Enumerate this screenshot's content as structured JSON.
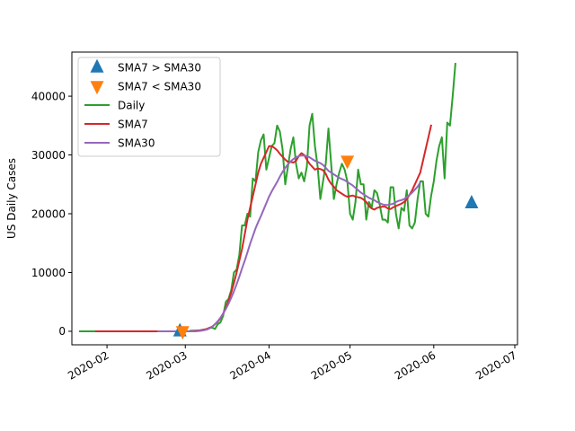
{
  "chart_data": {
    "type": "line",
    "title": "",
    "xlabel": "",
    "ylabel": "US Daily Cases",
    "x_start": "2020-01-22",
    "x_end": "2020-06-28",
    "xlim": [
      "2020-01-19",
      "2020-07-02"
    ],
    "ylim": [
      -2300,
      47500
    ],
    "grid": false,
    "legend_position": "upper left",
    "x_ticks": [
      {
        "date": "2020-02-01",
        "label": "2020-02"
      },
      {
        "date": "2020-03-01",
        "label": "2020-03"
      },
      {
        "date": "2020-04-01",
        "label": "2020-04"
      },
      {
        "date": "2020-05-01",
        "label": "2020-05"
      },
      {
        "date": "2020-06-01",
        "label": "2020-06"
      },
      {
        "date": "2020-07-01",
        "label": "2020-07"
      }
    ],
    "y_ticks": [
      {
        "value": 0,
        "label": "0"
      },
      {
        "value": 10000,
        "label": "10000"
      },
      {
        "value": 20000,
        "label": "20000"
      },
      {
        "value": 30000,
        "label": "30000"
      },
      {
        "value": 40000,
        "label": "40000"
      }
    ],
    "series": [
      {
        "name": "Daily",
        "color": "#2ca02c",
        "start": "2020-01-22",
        "step_days": 1,
        "values": [
          0,
          0,
          0,
          0,
          0,
          0,
          0,
          0,
          0,
          0,
          0,
          0,
          0,
          0,
          0,
          0,
          0,
          0,
          0,
          0,
          0,
          0,
          0,
          0,
          0,
          0,
          0,
          0,
          0,
          0,
          0,
          0,
          0,
          0,
          0,
          0,
          0,
          0,
          0,
          0,
          0,
          100,
          100,
          100,
          100,
          200,
          300,
          400,
          600,
          600,
          400,
          1200,
          1500,
          2600,
          5000,
          5500,
          7000,
          10000,
          10500,
          13000,
          18000,
          18000,
          20000,
          19500,
          26000,
          25500,
          30500,
          32500,
          33500,
          27500,
          29500,
          31500,
          32000,
          35000,
          34000,
          31000,
          25000,
          28000,
          31000,
          33000,
          28500,
          26000,
          27000,
          25500,
          28000,
          35000,
          37000,
          31500,
          28000,
          22500,
          25500,
          28500,
          34500,
          28500,
          22500,
          25000,
          27000,
          28500,
          27500,
          25500,
          20000,
          19000,
          22000,
          27500,
          25000,
          25000,
          19000,
          22000,
          21000,
          24000,
          23500,
          21500,
          19000,
          19000,
          18500,
          24500,
          24500,
          20000,
          17500,
          21000,
          20500,
          24000,
          18000,
          17500,
          18500,
          22500,
          25500,
          25500,
          20000,
          19500,
          23000,
          25500,
          29000,
          31500,
          33000,
          26000,
          35500,
          35000,
          40000,
          45500
        ]
      },
      {
        "name": "SMA7",
        "color": "#d62728",
        "start": "2020-01-28",
        "step_days": 1,
        "values": [
          0,
          0,
          0,
          0,
          0,
          0,
          0,
          0,
          0,
          0,
          0,
          0,
          0,
          0,
          0,
          0,
          0,
          0,
          0,
          0,
          0,
          0,
          0,
          0,
          0,
          0,
          0,
          0,
          0,
          0,
          0,
          0,
          0,
          0,
          0,
          0,
          50,
          100,
          150,
          200,
          300,
          400,
          600,
          800,
          1200,
          1600,
          2200,
          3000,
          4000,
          5200,
          6600,
          8200,
          10000,
          12000,
          14000,
          16500,
          19000,
          21000,
          23000,
          25000,
          27000,
          28500,
          29500,
          30500,
          31500,
          31500,
          31200,
          30800,
          30200,
          29700,
          29200,
          28800,
          28800,
          28700,
          29000,
          29800,
          30300,
          30000,
          29200,
          28500,
          28000,
          27500,
          27700,
          27600,
          27400,
          26800,
          25800,
          25100,
          24600,
          24000,
          23700,
          23400,
          23100,
          22900,
          23000,
          23100,
          22900,
          22800,
          22700,
          22400,
          22000,
          21300,
          20900,
          20700,
          21000,
          21100,
          21200,
          21200,
          20900,
          20800,
          21100,
          21300,
          21500,
          21700,
          22000,
          22500,
          23200,
          24000,
          25000,
          26000,
          27000,
          29000,
          31000,
          33000,
          35000
        ]
      },
      {
        "name": "SMA30",
        "color": "#9467bd",
        "start": "2020-02-20",
        "step_days": 1,
        "values": [
          0,
          0,
          0,
          0,
          0,
          0,
          0,
          0,
          0,
          0,
          0,
          0,
          0,
          0,
          0,
          50,
          100,
          200,
          300,
          500,
          800,
          1200,
          1700,
          2300,
          3000,
          3800,
          4700,
          5700,
          6800,
          8000,
          9300,
          10700,
          12000,
          13400,
          14900,
          16200,
          17500,
          18600,
          19600,
          20700,
          21800,
          22900,
          23800,
          24600,
          25400,
          26300,
          27100,
          27800,
          28400,
          28900,
          29300,
          29600,
          29800,
          29900,
          29900,
          29800,
          29600,
          29300,
          29000,
          28800,
          28600,
          28300,
          27800,
          27300,
          27000,
          26700,
          26400,
          26100,
          25900,
          25700,
          25400,
          25100,
          24800,
          24400,
          24000,
          23600,
          23300,
          23000,
          22700,
          22500,
          22300,
          22000,
          21800,
          21600,
          21500,
          21500,
          21600,
          21700,
          22000,
          22200,
          22300,
          22500,
          22800,
          23200,
          23600,
          24100,
          24600,
          25300
        ]
      }
    ],
    "markers": [
      {
        "name": "SMA7 > SMA30",
        "color": "#1f77b4",
        "shape": "triangle-up",
        "points": [
          {
            "date": "2020-02-28",
            "value": 0
          },
          {
            "date": "2020-06-15",
            "value": 21800
          }
        ]
      },
      {
        "name": "SMA7 < SMA30",
        "color": "#ff7f0e",
        "shape": "triangle-down",
        "points": [
          {
            "date": "2020-02-29",
            "value": 0
          },
          {
            "date": "2020-04-30",
            "value": 29000
          }
        ]
      }
    ],
    "legend": [
      {
        "label": "SMA7 > SMA30",
        "kind": "marker",
        "shape": "triangle-up",
        "color": "#1f77b4"
      },
      {
        "label": "SMA7 < SMA30",
        "kind": "marker",
        "shape": "triangle-down",
        "color": "#ff7f0e"
      },
      {
        "label": "Daily",
        "kind": "line",
        "color": "#2ca02c"
      },
      {
        "label": "SMA7",
        "kind": "line",
        "color": "#d62728"
      },
      {
        "label": "SMA30",
        "kind": "line",
        "color": "#9467bd"
      }
    ]
  }
}
